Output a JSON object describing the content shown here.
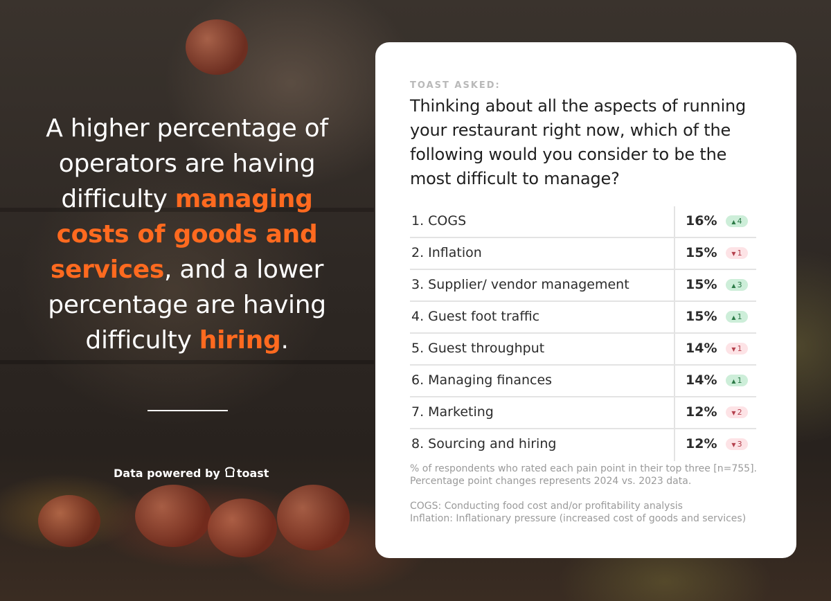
{
  "headline": {
    "part1": "A higher percentage of operators are having difficulty ",
    "highlight1": "managing costs of goods and services",
    "part2": ", and a lower percentage are having difficulty ",
    "highlight2": "hiring",
    "part3": "."
  },
  "branding": {
    "powered_by": "Data powered by",
    "logo_text": "toast"
  },
  "card": {
    "asked_label": "TOAST ASKED:",
    "question": "Thinking about all the aspects of running your restaurant right now, which of the following would you consider to be the most difficult to manage?",
    "footnote_line1": "% of respondents who rated each pain point in their top three [n=755].",
    "footnote_line2": "Percentage point changes represents 2024 vs. 2023 data.",
    "definition1": "COGS: Conducting food cost and/or profitability analysis",
    "definition2": "Inflation: Inflationary pressure (increased cost of goods and services)"
  },
  "colors": {
    "accent": "#ff6a1f",
    "up_bg": "#cdeed9",
    "up_text": "#2c7a47",
    "down_bg": "#fde3e6",
    "down_text": "#b4404d"
  },
  "chart_data": {
    "type": "table",
    "rows": [
      {
        "rank": "1.",
        "label": "COGS",
        "value": 16,
        "value_text": "16%",
        "change": 4,
        "direction": "up"
      },
      {
        "rank": "2.",
        "label": "Inflation",
        "value": 15,
        "value_text": "15%",
        "change": 1,
        "direction": "down"
      },
      {
        "rank": "3.",
        "label": "Supplier/ vendor management",
        "value": 15,
        "value_text": "15%",
        "change": 3,
        "direction": "up"
      },
      {
        "rank": "4.",
        "label": "Guest foot traffic",
        "value": 15,
        "value_text": "15%",
        "change": 1,
        "direction": "up"
      },
      {
        "rank": "5.",
        "label": "Guest throughput",
        "value": 14,
        "value_text": "14%",
        "change": 1,
        "direction": "down"
      },
      {
        "rank": "6.",
        "label": "Managing finances",
        "value": 14,
        "value_text": "14%",
        "change": 1,
        "direction": "up"
      },
      {
        "rank": "7.",
        "label": "Marketing",
        "value": 12,
        "value_text": "12%",
        "change": 2,
        "direction": "down"
      },
      {
        "rank": "8.",
        "label": "Sourcing and hiring",
        "value": 12,
        "value_text": "12%",
        "change": 3,
        "direction": "down"
      }
    ]
  }
}
